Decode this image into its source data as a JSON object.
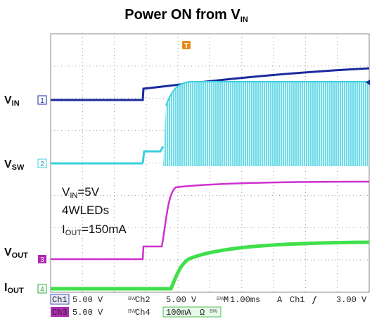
{
  "title": {
    "text": "Power ON from V",
    "sub": "IN"
  },
  "channel_labels": [
    {
      "text": "V",
      "sub": "IN"
    },
    {
      "text": "V",
      "sub": "SW"
    },
    {
      "text": "V",
      "sub": "OUT"
    },
    {
      "text": "I",
      "sub": "OUT"
    }
  ],
  "channel_markers": [
    "1",
    "2",
    "3",
    "4"
  ],
  "trigger_marker": "T",
  "annotations": [
    {
      "text": "V",
      "sub": "IN",
      "rest": "=5V"
    },
    {
      "text": "4WLEDs"
    },
    {
      "text": "I",
      "sub": "OUT",
      "rest": "=150mA"
    }
  ],
  "status": {
    "bw": "BW",
    "row1": [
      "Ch1",
      "5.00 V",
      "Ch2",
      "5.00 V",
      "M",
      "1.00ms",
      "A",
      "Ch1",
      "3.00 V"
    ],
    "row2": [
      "Ch3",
      "5.00 V",
      "Ch4",
      "100mA",
      "Ω"
    ]
  }
}
